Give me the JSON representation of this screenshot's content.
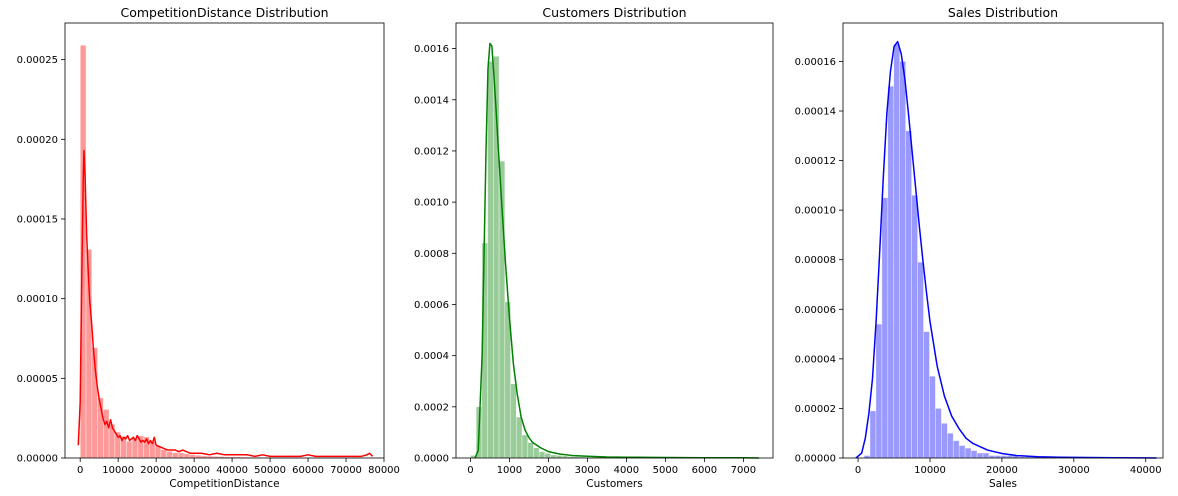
{
  "chart_data": [
    {
      "type": "histogram+kde",
      "title": "CompetitionDistance Distribution",
      "xlabel": "CompetitionDistance",
      "ylabel": "",
      "color": "#ff0000",
      "xlim": [
        -4000,
        80000
      ],
      "ylim": [
        0,
        0.000273
      ],
      "xticks": [
        0,
        10000,
        20000,
        30000,
        40000,
        50000,
        60000,
        70000,
        80000
      ],
      "yticks": [
        0,
        5e-05,
        0.0001,
        0.00015,
        0.0002,
        0.00025
      ],
      "xtick_labels": [
        "0",
        "10000",
        "20000",
        "30000",
        "40000",
        "50000",
        "60000",
        "70000",
        "80000"
      ],
      "ytick_labels": [
        "0.00000",
        "0.00005",
        "0.00010",
        "0.00015",
        "0.00020",
        "0.00025"
      ],
      "bins": {
        "start": 20,
        "width": 1517,
        "heights": [
          0.000259,
          0.000131,
          6.93e-05,
          3.78e-05,
          3.05e-05,
          2.12e-05,
          1.63e-05,
          1.36e-05,
          1.05e-05,
          1.24e-05,
          1.39e-05,
          1.32e-05,
          1.01e-05,
          7.4e-06,
          5.2e-06,
          4.2e-06,
          3.4e-06,
          3.2e-06,
          2.6e-06,
          2.1e-06,
          1.7e-06,
          1.4e-06,
          1.2e-06,
          1e-06,
          9e-07,
          8e-07,
          7e-07,
          6e-07,
          6e-07,
          5e-07,
          5e-07,
          4e-07,
          4e-07,
          3e-07,
          3e-07,
          3e-07,
          3e-07,
          3e-07,
          2e-07,
          2e-07,
          2e-07,
          2e-07,
          2e-07,
          2e-07,
          2e-07,
          2e-07,
          2e-07,
          2e-07,
          2e-07,
          3e-07
        ]
      },
      "kde": {
        "x": [
          -500,
          0,
          400,
          800,
          1000,
          1300,
          1700,
          2100,
          2500,
          3000,
          3500,
          4000,
          4500,
          5000,
          5500,
          6000,
          6500,
          7000,
          7500,
          8000,
          8500,
          9000,
          9500,
          10000,
          10500,
          11000,
          11500,
          12000,
          12500,
          13000,
          13500,
          14000,
          14500,
          15000,
          15500,
          16000,
          16500,
          17000,
          17500,
          18000,
          18500,
          19000,
          19500,
          20000,
          21000,
          22000,
          23000,
          24000,
          25000,
          26000,
          27000,
          28000,
          29000,
          30000,
          32000,
          34000,
          36000,
          38000,
          40000,
          42000,
          44000,
          46000,
          48000,
          50000,
          52000,
          54000,
          56000,
          58000,
          60000,
          62000,
          64000,
          66000,
          68000,
          70000,
          72000,
          74000,
          75500,
          76200,
          77000
        ],
        "y": [
          8e-06,
          3.5e-05,
          0.00011,
          0.000175,
          0.000193,
          0.000176,
          0.00014,
          0.000118,
          9.9e-05,
          8.5e-05,
          6.8e-05,
          5.5e-05,
          4.5e-05,
          3.7e-05,
          3.1e-05,
          2.5e-05,
          2.1e-05,
          2.3e-05,
          1.9e-05,
          2.4e-05,
          1.9e-05,
          1.7e-05,
          1.5e-05,
          1.3e-05,
          1.4e-05,
          1.1e-05,
          1.3e-05,
          1.2e-05,
          1.4e-05,
          1.1e-05,
          1.2e-05,
          1.3e-05,
          1.1e-05,
          1.4e-05,
          1.2e-05,
          1e-05,
          1.1e-05,
          1e-05,
          1.2e-05,
          9e-06,
          1.1e-05,
          9e-06,
          1.3e-05,
          8e-06,
          7e-06,
          6e-06,
          5e-06,
          5e-06,
          5e-06,
          4e-06,
          5e-06,
          4e-06,
          3e-06,
          3e-06,
          3e-06,
          2e-06,
          3e-06,
          2e-06,
          2e-06,
          2e-06,
          2e-06,
          1e-06,
          2e-06,
          1e-06,
          1e-06,
          1e-06,
          1e-06,
          1e-06,
          2e-06,
          1e-06,
          1e-06,
          1e-06,
          1e-06,
          1e-06,
          1e-06,
          1e-06,
          2e-06,
          3e-06,
          1e-06
        ]
      }
    },
    {
      "type": "histogram+kde",
      "title": "Customers Distribution",
      "xlabel": "Customers",
      "ylabel": "",
      "color": "#008000",
      "xlim": [
        -370,
        7760
      ],
      "ylim": [
        0,
        0.0017
      ],
      "xticks": [
        0,
        1000,
        2000,
        3000,
        4000,
        5000,
        6000,
        7000
      ],
      "yticks": [
        0,
        0.0002,
        0.0004,
        0.0006,
        0.0008,
        0.001,
        0.0012,
        0.0014,
        0.0016
      ],
      "xtick_labels": [
        "0",
        "1000",
        "2000",
        "3000",
        "4000",
        "5000",
        "6000",
        "7000"
      ],
      "ytick_labels": [
        "0.0000",
        "0.0002",
        "0.0004",
        "0.0006",
        "0.0008",
        "0.0010",
        "0.0012",
        "0.0014",
        "0.0016"
      ],
      "bins": {
        "start": 0,
        "width": 147,
        "heights": [
          1e-05,
          0.0002,
          0.00084,
          0.00155,
          0.00157,
          0.00116,
          0.00061,
          0.00029,
          0.00016,
          9e-05,
          6e-05,
          4e-05,
          2.5e-05,
          1.8e-05,
          1.2e-05,
          1e-05,
          8e-06,
          6e-06,
          5e-06,
          4e-06,
          3e-06,
          3e-06,
          2e-06,
          2e-06,
          2e-06,
          2e-06,
          1e-06,
          1e-06,
          1e-06,
          1e-06,
          1e-06,
          1e-06,
          1e-06,
          1e-06,
          1e-06,
          1e-06,
          1e-06,
          1e-06,
          1e-06,
          1e-06,
          1e-06,
          1e-06,
          1e-06,
          1e-06,
          1e-06,
          1e-06,
          1e-06,
          1e-06,
          1e-06,
          1e-06
        ]
      },
      "kde": {
        "x": [
          120,
          200,
          300,
          400,
          450,
          500,
          550,
          600,
          650,
          700,
          800,
          900,
          1000,
          1100,
          1200,
          1300,
          1400,
          1500,
          1600,
          1800,
          2000,
          2300,
          2600,
          3000,
          3500,
          4000,
          5000,
          6000,
          7000,
          7400
        ],
        "y": [
          0.0,
          3e-05,
          0.0004,
          0.0012,
          0.00152,
          0.00162,
          0.00161,
          0.0015,
          0.00138,
          0.00125,
          0.001,
          0.00076,
          0.00055,
          0.00037,
          0.00025,
          0.00016,
          0.00011,
          8e-05,
          6e-05,
          4e-05,
          2.5e-05,
          1.5e-05,
          1e-05,
          7e-06,
          4e-06,
          3e-06,
          2e-06,
          1e-06,
          1e-06,
          0.0
        ]
      }
    },
    {
      "type": "histogram+kde",
      "title": "Sales Distribution",
      "xlabel": "Sales",
      "ylabel": "",
      "color": "#0000ff",
      "xlim": [
        -2100,
        42400
      ],
      "ylim": [
        0,
        0.0001755
      ],
      "xticks": [
        0,
        10000,
        20000,
        30000,
        40000
      ],
      "yticks": [
        0,
        2e-05,
        4e-05,
        6e-05,
        8e-05,
        0.0001,
        0.00012,
        0.00014,
        0.00016
      ],
      "xtick_labels": [
        "0",
        "10000",
        "20000",
        "30000",
        "40000"
      ],
      "ytick_labels": [
        "0.00000",
        "0.00002",
        "0.00004",
        "0.00006",
        "0.00008",
        "0.00010",
        "0.00012",
        "0.00014",
        "0.00016"
      ],
      "bins": {
        "start": 0,
        "width": 827,
        "heights": [
          0.0,
          1e-06,
          1.9e-05,
          5.4e-05,
          0.000105,
          0.00015,
          0.000167,
          0.00016,
          0.000132,
          0.000106,
          7.9e-05,
          5.1e-05,
          3.3e-05,
          2e-05,
          1.4e-05,
          1e-05,
          7e-06,
          5e-06,
          4e-06,
          3e-06,
          2e-06,
          2e-06,
          1e-06,
          1e-06,
          1e-06,
          1e-06,
          1e-06,
          5e-07,
          5e-07,
          5e-07,
          5e-07,
          5e-07,
          3e-07,
          3e-07,
          3e-07,
          3e-07,
          3e-07,
          3e-07,
          3e-07,
          3e-07,
          3e-07,
          3e-07,
          3e-07,
          3e-07,
          3e-07,
          3e-07,
          3e-07,
          3e-07,
          3e-07,
          3e-07
        ]
      },
      "kde": {
        "x": [
          -300,
          500,
          1000,
          1500,
          2000,
          2500,
          3000,
          3500,
          4000,
          4500,
          5000,
          5500,
          6000,
          6500,
          7000,
          7500,
          8000,
          8500,
          9000,
          9500,
          10000,
          11000,
          12000,
          13000,
          14000,
          15000,
          16000,
          18000,
          20000,
          22000,
          25000,
          28000,
          32000,
          36000,
          41500
        ],
        "y": [
          0.0,
          2e-06,
          8e-06,
          1.8e-05,
          3.2e-05,
          5.5e-05,
          8.3e-05,
          0.000113,
          0.000139,
          0.000156,
          0.000166,
          0.000168,
          0.000163,
          0.000153,
          0.000139,
          0.000124,
          0.000109,
          9.4e-05,
          8e-05,
          6.7e-05,
          5.5e-05,
          3.7e-05,
          2.5e-05,
          1.7e-05,
          1.2e-05,
          8e-06,
          5.8e-06,
          3.2e-06,
          1.8e-06,
          1e-06,
          5e-07,
          3e-07,
          2e-07,
          1e-07,
          0.0
        ]
      }
    }
  ]
}
